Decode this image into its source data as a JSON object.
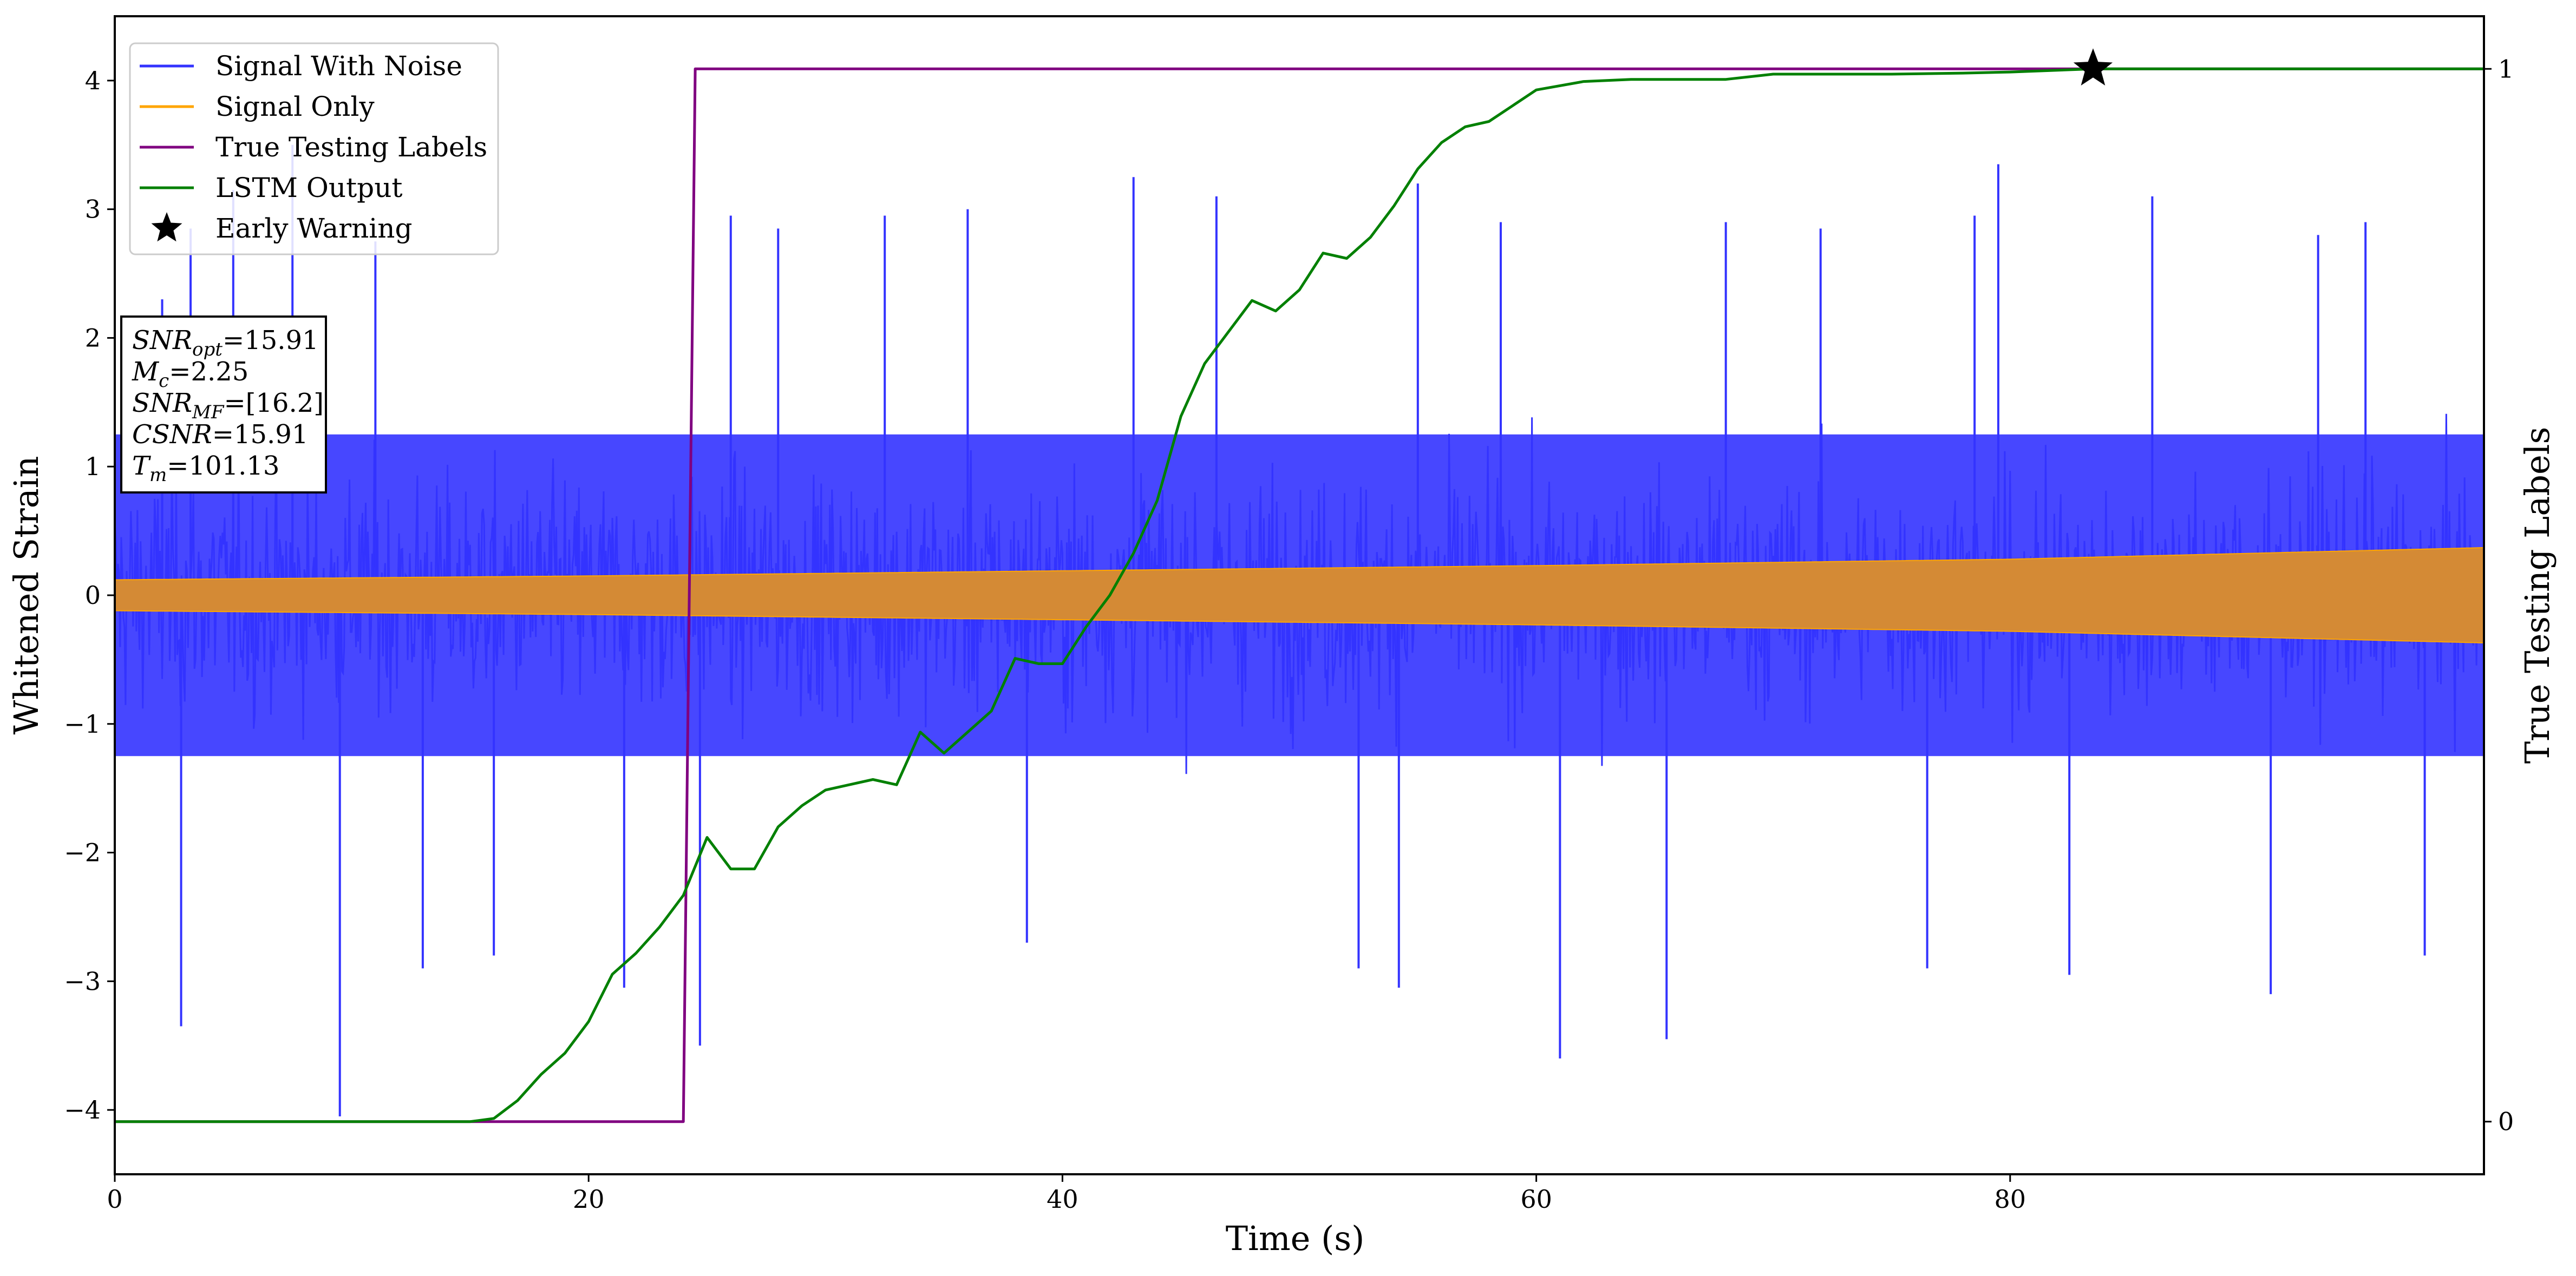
{
  "chart_data": {
    "type": "line",
    "title": "",
    "xlabel": "Time (s)",
    "ylabel": "Whitened Strain",
    "y2label": "True Testing Labels",
    "xlim": [
      0,
      100
    ],
    "ylim": [
      -4.5,
      4.5
    ],
    "y2lim": [
      -0.05,
      1.05
    ],
    "xticks": [
      0,
      20,
      40,
      60,
      80
    ],
    "yticks": [
      -4,
      -3,
      -2,
      -1,
      0,
      1,
      2,
      3,
      4
    ],
    "yticklabels": [
      "−4",
      "−3",
      "−2",
      "−1",
      "0",
      "1",
      "2",
      "3",
      "4"
    ],
    "y2ticks": [
      0,
      1
    ],
    "grid": false,
    "legend_position": "top-left",
    "series": [
      {
        "name": "Signal With Noise",
        "axis": "left",
        "color": "#3333ff",
        "kind": "noisy-band",
        "typical_envelope": 1.25,
        "spikes": [
          {
            "x": 2.0,
            "y": 2.3
          },
          {
            "x": 2.8,
            "y": -3.35
          },
          {
            "x": 3.2,
            "y": 2.85
          },
          {
            "x": 5.0,
            "y": 3.15
          },
          {
            "x": 7.5,
            "y": 3.5
          },
          {
            "x": 9.5,
            "y": -4.05
          },
          {
            "x": 11.0,
            "y": 2.75
          },
          {
            "x": 13.0,
            "y": -2.9
          },
          {
            "x": 16.0,
            "y": -2.8
          },
          {
            "x": 21.5,
            "y": -3.05
          },
          {
            "x": 24.7,
            "y": -3.5
          },
          {
            "x": 26.0,
            "y": 2.95
          },
          {
            "x": 28.0,
            "y": 2.85
          },
          {
            "x": 32.5,
            "y": 2.95
          },
          {
            "x": 36.0,
            "y": 3.0
          },
          {
            "x": 38.5,
            "y": -2.7
          },
          {
            "x": 43.0,
            "y": 3.25
          },
          {
            "x": 46.5,
            "y": 3.1
          },
          {
            "x": 52.5,
            "y": -2.9
          },
          {
            "x": 54.2,
            "y": -3.05
          },
          {
            "x": 55.0,
            "y": 3.2
          },
          {
            "x": 58.5,
            "y": 2.9
          },
          {
            "x": 61.0,
            "y": -3.6
          },
          {
            "x": 65.5,
            "y": -3.45
          },
          {
            "x": 68.0,
            "y": 2.9
          },
          {
            "x": 72.0,
            "y": 2.85
          },
          {
            "x": 76.5,
            "y": -2.9
          },
          {
            "x": 78.5,
            "y": 2.95
          },
          {
            "x": 79.5,
            "y": 3.35
          },
          {
            "x": 82.5,
            "y": -2.95
          },
          {
            "x": 86.0,
            "y": 3.1
          },
          {
            "x": 91.0,
            "y": -3.1
          },
          {
            "x": 93.0,
            "y": 2.8
          },
          {
            "x": 95.0,
            "y": 2.9
          },
          {
            "x": 97.5,
            "y": -2.8
          }
        ]
      },
      {
        "name": "Signal Only",
        "axis": "left",
        "color": "#ffa500",
        "kind": "chirp-band",
        "amplitude": [
          [
            0,
            0.12
          ],
          [
            20,
            0.15
          ],
          [
            40,
            0.19
          ],
          [
            60,
            0.23
          ],
          [
            80,
            0.28
          ],
          [
            100,
            0.37
          ]
        ]
      },
      {
        "name": "True Testing Labels",
        "axis": "right",
        "color": "#800080",
        "x": [
          0,
          24,
          24.5,
          100
        ],
        "y": [
          0,
          0,
          1,
          1
        ]
      },
      {
        "name": "LSTM Output",
        "axis": "right",
        "color": "#008000",
        "x": [
          0,
          15,
          16,
          17,
          18,
          19,
          20,
          21,
          22,
          23,
          24,
          25,
          26,
          27,
          28,
          29,
          30,
          31,
          32,
          33,
          34,
          35,
          36,
          37,
          38,
          39,
          40,
          41,
          42,
          43,
          44,
          45,
          46,
          47,
          48,
          49,
          50,
          51,
          52,
          53,
          54,
          55,
          56,
          57,
          58,
          59,
          60,
          62,
          64,
          66,
          68,
          70,
          72,
          75,
          78,
          80,
          83.5,
          85,
          90,
          95,
          100
        ],
        "y": [
          0,
          0,
          0.003,
          0.02,
          0.045,
          0.065,
          0.095,
          0.14,
          0.16,
          0.185,
          0.215,
          0.27,
          0.24,
          0.24,
          0.28,
          0.3,
          0.315,
          0.32,
          0.325,
          0.32,
          0.37,
          0.35,
          0.37,
          0.39,
          0.44,
          0.435,
          0.435,
          0.47,
          0.5,
          0.54,
          0.59,
          0.67,
          0.72,
          0.75,
          0.78,
          0.77,
          0.79,
          0.825,
          0.82,
          0.84,
          0.87,
          0.905,
          0.93,
          0.945,
          0.95,
          0.965,
          0.98,
          0.988,
          0.99,
          0.99,
          0.99,
          0.995,
          0.995,
          0.995,
          0.996,
          0.997,
          1.0,
          1.0,
          1.0,
          1.0,
          1.0
        ]
      },
      {
        "name": "Early Warning",
        "axis": "right",
        "color": "#000000",
        "marker": "star",
        "x": [
          83.5
        ],
        "y": [
          1.0
        ]
      }
    ],
    "annotation": {
      "lines": [
        {
          "main": "SNR",
          "sub": "opt",
          "rest": "=15.91"
        },
        {
          "main": "M",
          "sub": "c",
          "rest": "=2.25"
        },
        {
          "main": "SNR",
          "sub": "MF",
          "rest": "=[16.2]"
        },
        {
          "main": "CSNR",
          "sub": "",
          "rest": "=15.91"
        },
        {
          "main": "T",
          "sub": "m",
          "rest": "=101.13"
        }
      ]
    }
  }
}
